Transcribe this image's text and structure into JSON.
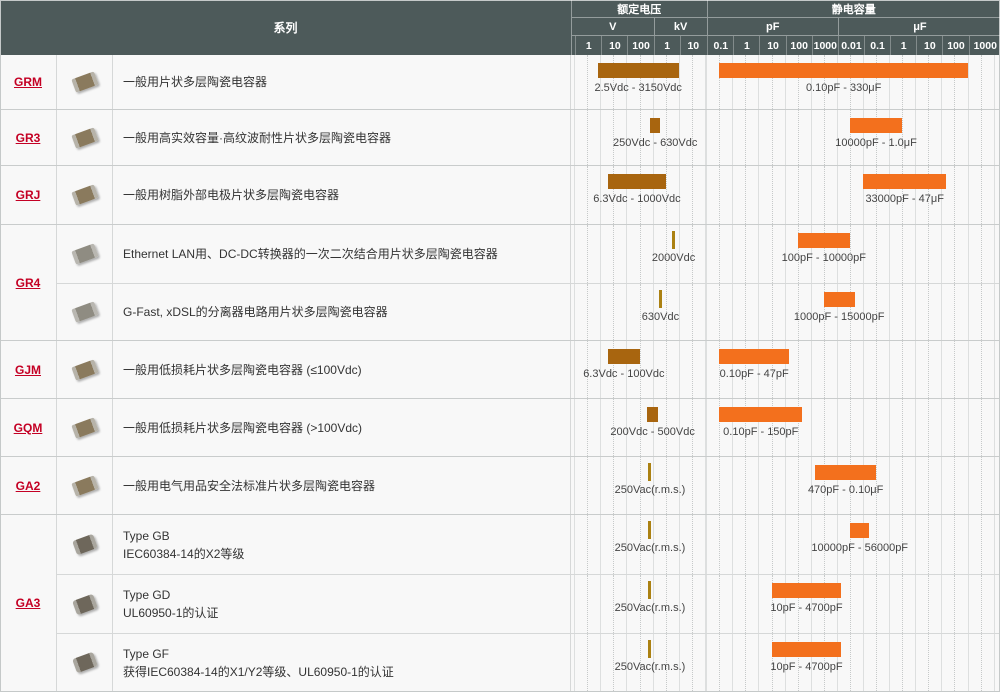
{
  "header": {
    "series_label": "系列",
    "voltage_group_label": "额定电压",
    "capacitance_group_label": "静电容量"
  },
  "colors": {
    "header_bg": "#4d5a5a",
    "row_bg": "#f8f8f8",
    "voltage_bar": "#a8650f",
    "voltage_marker": "#ab8112",
    "capacitance_bar": "#f3701d",
    "series_link": "#c40024"
  },
  "chart_data": {
    "type": "bar",
    "subtype": "horizontal-log-range",
    "axes": {
      "rated_voltage": {
        "label": "额定电压",
        "scale": "log",
        "unit_groups": [
          "V",
          "kV"
        ],
        "tick_labels": [
          "1",
          "10",
          "100",
          "1",
          "10"
        ],
        "tick_values_v": [
          1,
          10,
          100,
          1000,
          10000
        ]
      },
      "capacitance": {
        "label": "静电容量",
        "scale": "log",
        "unit_groups": [
          "pF",
          "μF"
        ],
        "tick_labels": [
          "0.1",
          "1",
          "10",
          "100",
          "1000",
          "0.01",
          "0.1",
          "1",
          "10",
          "100",
          "1000"
        ],
        "tick_values_pf": [
          0.1,
          1,
          10,
          100,
          1000,
          10000,
          100000,
          1000000,
          10000000,
          100000000,
          1000000000
        ]
      }
    },
    "groups": [
      {
        "series": "GRM",
        "rows": [
          {
            "description_lines": [
              "一般用片状多层陶瓷电容器"
            ],
            "chip": "tan",
            "voltage": {
              "min_v": 2.5,
              "max_v": 3150,
              "label": "2.5Vdc - 3150Vdc"
            },
            "capacitance": {
              "min_pf": 0.1,
              "max_pf": 330000000,
              "label": "0.10pF - 330μF"
            }
          }
        ]
      },
      {
        "series": "GR3",
        "rows": [
          {
            "description_lines": [
              "一般用高实效容量·高纹波耐性片状多层陶瓷电容器"
            ],
            "chip": "tan",
            "voltage": {
              "min_v": 250,
              "max_v": 630,
              "label": "250Vdc - 630Vdc"
            },
            "capacitance": {
              "min_pf": 10000,
              "max_pf": 1000000,
              "label": "10000pF - 1.0μF"
            }
          }
        ]
      },
      {
        "series": "GRJ",
        "rows": [
          {
            "description_lines": [
              "一般用树脂外部电极片状多层陶瓷电容器"
            ],
            "chip": "tan",
            "voltage": {
              "min_v": 6.3,
              "max_v": 1000,
              "label": "6.3Vdc - 1000Vdc"
            },
            "capacitance": {
              "min_pf": 33000,
              "max_pf": 47000000,
              "label": "33000pF - 47μF"
            }
          }
        ]
      },
      {
        "series": "GR4",
        "rows": [
          {
            "description_lines": [
              "Ethernet LAN用、DC-DC转换器的一次二次结合用片状多层陶瓷电容器"
            ],
            "chip": "gray",
            "voltage": {
              "min_v": 2000,
              "max_v": null,
              "label": "2000Vdc"
            },
            "capacitance": {
              "min_pf": 100,
              "max_pf": 10000,
              "label": "100pF - 10000pF"
            }
          },
          {
            "description_lines": [
              "G-Fast, xDSL的分离器电路用片状多层陶瓷电容器"
            ],
            "chip": "gray",
            "voltage": {
              "min_v": 630,
              "max_v": null,
              "label": "630Vdc"
            },
            "capacitance": {
              "min_pf": 1000,
              "max_pf": 15000,
              "label": "1000pF - 15000pF"
            }
          }
        ]
      },
      {
        "series": "GJM",
        "rows": [
          {
            "description_lines": [
              "一般用低损耗片状多层陶瓷电容器 (≤100Vdc)"
            ],
            "chip": "tan",
            "voltage": {
              "min_v": 6.3,
              "max_v": 100,
              "label": "6.3Vdc - 100Vdc"
            },
            "capacitance": {
              "min_pf": 0.1,
              "max_pf": 47,
              "label": "0.10pF - 47pF"
            }
          }
        ]
      },
      {
        "series": "GQM",
        "rows": [
          {
            "description_lines": [
              "一般用低损耗片状多层陶瓷电容器 (>100Vdc)"
            ],
            "chip": "tan",
            "voltage": {
              "min_v": 200,
              "max_v": 500,
              "label": "200Vdc - 500Vdc"
            },
            "capacitance": {
              "min_pf": 0.1,
              "max_pf": 150,
              "label": "0.10pF - 150pF"
            }
          }
        ]
      },
      {
        "series": "GA2",
        "rows": [
          {
            "description_lines": [
              "一般用电气用品安全法标准片状多层陶瓷电容器"
            ],
            "chip": "tan",
            "voltage": {
              "min_v": 250,
              "max_v": null,
              "label": "250Vac(r.m.s.)"
            },
            "capacitance": {
              "min_pf": 470,
              "max_pf": 100000,
              "label": "470pF - 0.10μF"
            }
          }
        ]
      },
      {
        "series": "GA3",
        "rows": [
          {
            "description_lines": [
              "Type GB",
              "IEC60384-14的X2等级"
            ],
            "chip": "dark",
            "voltage": {
              "min_v": 250,
              "max_v": null,
              "label": "250Vac(r.m.s.)"
            },
            "capacitance": {
              "min_pf": 10000,
              "max_pf": 56000,
              "label": "10000pF - 56000pF"
            }
          },
          {
            "description_lines": [
              "Type GD",
              "UL60950-1的认证"
            ],
            "chip": "dark",
            "voltage": {
              "min_v": 250,
              "max_v": null,
              "label": "250Vac(r.m.s.)"
            },
            "capacitance": {
              "min_pf": 10,
              "max_pf": 4700,
              "label": "10pF - 4700pF"
            }
          },
          {
            "description_lines": [
              "Type GF",
              "获得IEC60384-14的X1/Y2等级、UL60950-1的认证"
            ],
            "chip": "dark",
            "voltage": {
              "min_v": 250,
              "max_v": null,
              "label": "250Vac(r.m.s.)"
            },
            "capacitance": {
              "min_pf": 10,
              "max_pf": 4700,
              "label": "10pF - 4700pF"
            }
          }
        ]
      }
    ]
  }
}
